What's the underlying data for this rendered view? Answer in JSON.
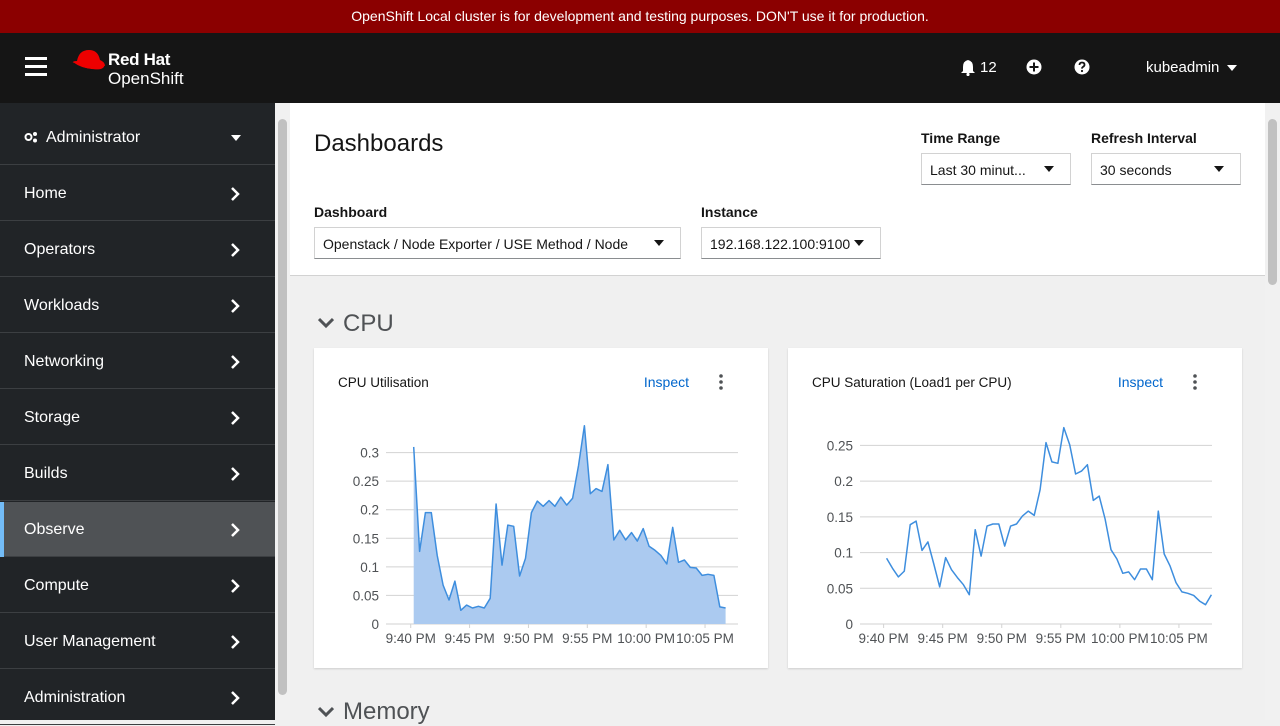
{
  "banner": "OpenShift Local cluster is for development and testing purposes. DON'T use it for production.",
  "header": {
    "brand_top": "Red Hat",
    "brand_bottom": "OpenShift",
    "notifications": "12",
    "user": "kubeadmin"
  },
  "nav": {
    "perspective": "Administrator",
    "items": [
      "Home",
      "Operators",
      "Workloads",
      "Networking",
      "Storage",
      "Builds",
      "Observe",
      "Compute",
      "User Management",
      "Administration"
    ],
    "active": "Observe"
  },
  "page": {
    "title": "Dashboards",
    "time_range": {
      "label": "Time Range",
      "value": "Last 30 minut..."
    },
    "refresh": {
      "label": "Refresh Interval",
      "value": "30 seconds"
    },
    "dashboard": {
      "label": "Dashboard",
      "value": "Openstack / Node Exporter / USE Method / Node"
    },
    "instance": {
      "label": "Instance",
      "value": "192.168.122.100:9100"
    },
    "sections": [
      "CPU",
      "Memory"
    ]
  },
  "chart_data": [
    {
      "type": "area",
      "title": "CPU Utilisation",
      "action": "Inspect",
      "color": "#3e8ede",
      "fill": "#abcaf0",
      "grid": true,
      "x": [
        1300.25,
        1300.75,
        1301.25,
        1301.75,
        1302.25,
        1302.75,
        1303.25,
        1303.75,
        1304.25,
        1304.75,
        1305.25,
        1305.75,
        1306.25,
        1306.75,
        1307.25,
        1307.75,
        1308.25,
        1308.75,
        1309.25,
        1309.75,
        1310.25,
        1310.75,
        1311.25,
        1311.75,
        1312.25,
        1312.75,
        1313.25,
        1313.75,
        1314.25,
        1314.75,
        1315.25,
        1315.75,
        1316.25,
        1316.75,
        1317.25,
        1317.75,
        1318.25,
        1318.75,
        1319.25,
        1319.75,
        1320.25,
        1320.75,
        1321.25,
        1321.75,
        1322.25,
        1322.75,
        1323.25,
        1323.75,
        1324.25,
        1324.75,
        1325.25,
        1325.75,
        1326.25,
        1326.75
      ],
      "values": [
        0.31,
        0.127,
        0.195,
        0.195,
        0.12,
        0.068,
        0.042,
        0.075,
        0.024,
        0.033,
        0.028,
        0.031,
        0.028,
        0.045,
        0.21,
        0.103,
        0.173,
        0.171,
        0.084,
        0.115,
        0.195,
        0.215,
        0.206,
        0.216,
        0.206,
        0.222,
        0.208,
        0.22,
        0.277,
        0.347,
        0.228,
        0.237,
        0.232,
        0.279,
        0.147,
        0.164,
        0.147,
        0.16,
        0.145,
        0.167,
        0.136,
        0.129,
        0.12,
        0.105,
        0.169,
        0.108,
        0.112,
        0.099,
        0.098,
        0.085,
        0.087,
        0.085,
        0.03,
        0.028
      ],
      "xlim": [
        1297.9,
        1327.8
      ],
      "xticks": [
        {
          "value": 1300,
          "label": "9:40 PM"
        },
        {
          "value": 1305,
          "label": "9:45 PM"
        },
        {
          "value": 1310,
          "label": "9:50 PM"
        },
        {
          "value": 1315,
          "label": "9:55 PM"
        },
        {
          "value": 1320,
          "label": "10:00 PM"
        },
        {
          "value": 1325,
          "label": "10:05 PM"
        }
      ],
      "ylim": [
        0,
        0.35
      ],
      "yticks": [
        0,
        0.05,
        0.1,
        0.15,
        0.2,
        0.25,
        0.3
      ]
    },
    {
      "type": "line",
      "title": "CPU Saturation (Load1 per CPU)",
      "action": "Inspect",
      "color": "#3e8ede",
      "grid": true,
      "x": [
        1300.25,
        1300.75,
        1301.25,
        1301.75,
        1302.25,
        1302.75,
        1303.25,
        1303.75,
        1304.25,
        1304.75,
        1305.25,
        1305.75,
        1306.25,
        1306.75,
        1307.25,
        1307.75,
        1308.25,
        1308.75,
        1309.25,
        1309.75,
        1310.25,
        1310.75,
        1311.25,
        1311.75,
        1312.25,
        1312.75,
        1313.25,
        1313.75,
        1314.25,
        1314.75,
        1315.25,
        1315.75,
        1316.25,
        1316.75,
        1317.25,
        1317.75,
        1318.25,
        1318.75,
        1319.25,
        1319.75,
        1320.25,
        1320.75,
        1321.25,
        1321.75,
        1322.25,
        1322.75,
        1323.25,
        1323.75,
        1324.25,
        1324.75,
        1325.25,
        1325.75,
        1326.25,
        1326.75,
        1327.25,
        1327.75
      ],
      "values": [
        0.092,
        0.078,
        0.066,
        0.074,
        0.139,
        0.144,
        0.103,
        0.115,
        0.084,
        0.052,
        0.093,
        0.076,
        0.065,
        0.055,
        0.041,
        0.132,
        0.095,
        0.137,
        0.14,
        0.14,
        0.109,
        0.137,
        0.14,
        0.151,
        0.158,
        0.152,
        0.188,
        0.254,
        0.227,
        0.225,
        0.275,
        0.251,
        0.21,
        0.214,
        0.223,
        0.173,
        0.179,
        0.147,
        0.104,
        0.091,
        0.071,
        0.073,
        0.062,
        0.077,
        0.077,
        0.062,
        0.158,
        0.098,
        0.081,
        0.058,
        0.045,
        0.043,
        0.04,
        0.032,
        0.027,
        0.041
      ],
      "xlim": [
        1298,
        1327.8
      ],
      "xticks": [
        {
          "value": 1300,
          "label": "9:40 PM"
        },
        {
          "value": 1305,
          "label": "9:45 PM"
        },
        {
          "value": 1310,
          "label": "9:50 PM"
        },
        {
          "value": 1315,
          "label": "9:55 PM"
        },
        {
          "value": 1320,
          "label": "10:00 PM"
        },
        {
          "value": 1325,
          "label": "10:05 PM"
        }
      ],
      "ylim": [
        0,
        0.28
      ],
      "yticks": [
        0,
        0.05,
        0.1,
        0.15,
        0.2,
        0.25
      ]
    }
  ]
}
